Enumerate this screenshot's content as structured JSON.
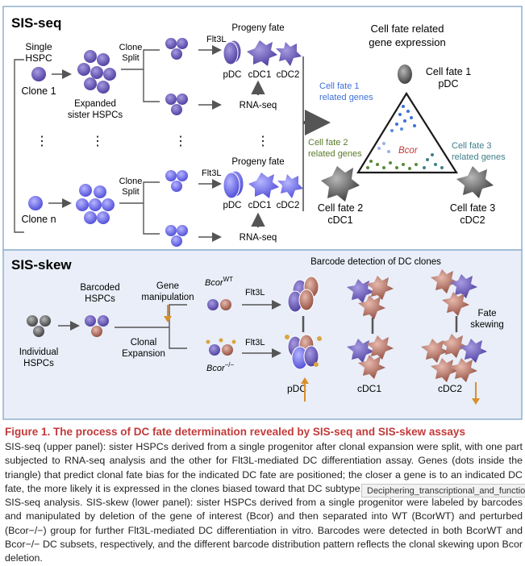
{
  "sis_seq": {
    "panel_title": "SIS-seq",
    "single_hspc": "Single\nHSPC",
    "clone_1": "Clone 1",
    "clone_n": "Clone n",
    "expanded": "Expanded\nsister HSPCs",
    "clone_split": "Clone\nSplit",
    "flt3l": "Flt3L",
    "progeny_fate": "Progeny fate",
    "pdc": "pDC",
    "cdc1": "cDC1",
    "cdc2": "cDC2",
    "rna_seq": "RNA-seq",
    "cell_fate_expression": "Cell fate related\ngene expression",
    "cell_fate_1": "Cell fate 1\npDC",
    "cell_fate_2": "Cell fate 2\ncDC1",
    "cell_fate_3": "Cell fate 3\ncDC2",
    "related_1": "Cell fate 1\nrelated genes",
    "related_2": "Cell fate 2\nrelated genes",
    "related_3": "Cell fate 3\nrelated genes",
    "bcor": "Bcor",
    "dots": "⋮"
  },
  "sis_skew": {
    "panel_title": "SIS-skew",
    "barcoded": "Barcoded\nHSPCs",
    "gene_manipulation": "Gene\nmanipulation",
    "individual": "Individual\nHSPCs",
    "clonal_expansion": "Clonal\nExpansion",
    "bcor_wt": "Bcor",
    "bcor_wt_sup": "WT",
    "bcor_ko": "Bcor",
    "bcor_ko_sup": "−/−",
    "flt3l": "Flt3L",
    "barcode_detection": "Barcode detection of DC clones",
    "fate_skewing": "Fate\nskewing",
    "pdc": "pDC",
    "cdc1": "cDC1",
    "cdc2": "cDC2"
  },
  "caption": {
    "title": "Figure 1. The process of DC fate determination revealed by SIS-seq and SIS-skew assays",
    "body": "SIS-seq (upper panel): sister HSPCs derived from a single progenitor after clonal expansion were split, with one part subjected to RNA-seq analysis and the other for Flt3L-mediated DC differentiation assay. Genes (dots inside the triangle) that predict clonal fate bias for the indicated DC fate are positioned; the closer a gene is to an indicated DC fate, the more likely it is expressed in the clones biased toward that DC subtype. Clone n represents the nth clone in SIS-seq analysis. SIS-skew (lower panel): sister HSPCs derived from a single progenitor were labeled by barcodes and manipulated by deletion of the gene of interest (Bcor) and then separated into WT (BcorWT) and perturbed (Bcor−/−) group for further Flt3L-mediated DC differentiation in vitro. Barcodes were detected in both BcorWT and Bcor−/− DC subsets, respectively, and the different barcode distribution pattern reflects the clonal skewing upon Bcor deletion."
  },
  "tooltip": "Deciphering_transcriptional_and_functional"
}
